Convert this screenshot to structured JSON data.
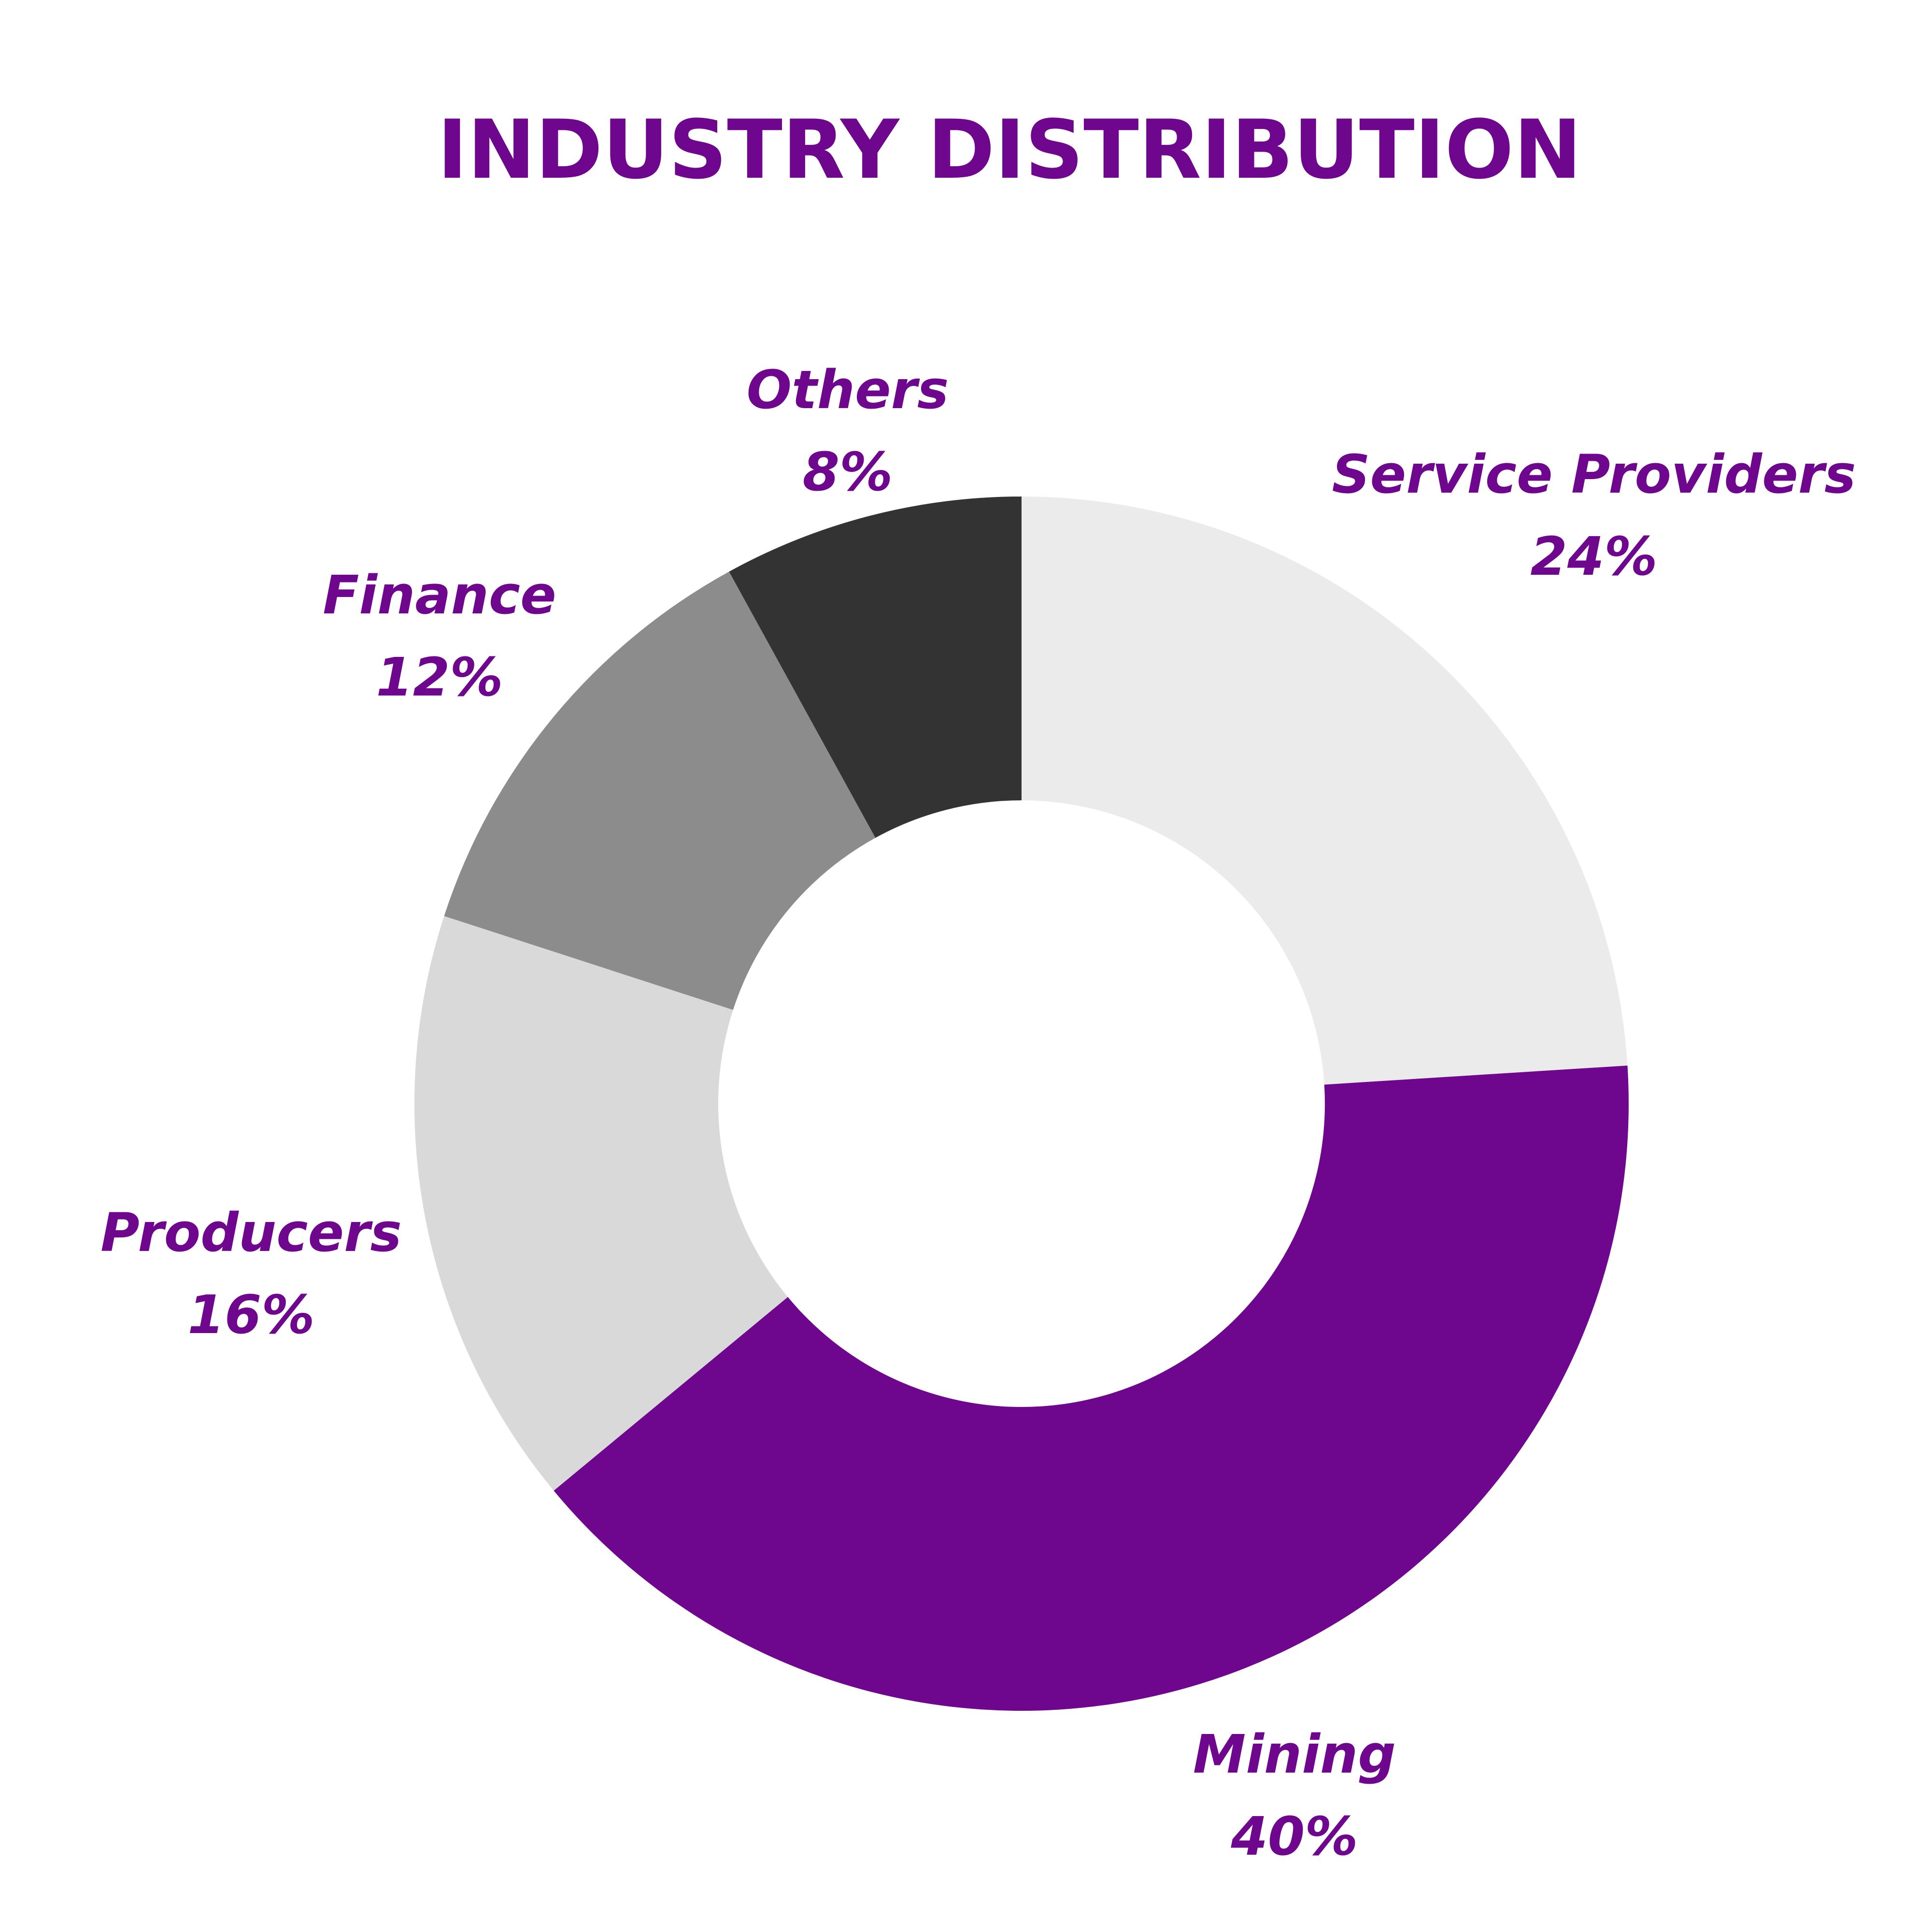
{
  "chart_data": {
    "type": "pie",
    "variant": "donut",
    "title": "INDUSTRY DISTRIBUTION",
    "categories": [
      "Service Providers",
      "Mining",
      "Producers",
      "Finance",
      "Others"
    ],
    "values": [
      24,
      40,
      16,
      12,
      8
    ],
    "value_labels": [
      "24%",
      "40%",
      "16%",
      "12%",
      "8%"
    ],
    "colors": [
      "#ebebeb",
      "#6e078e",
      "#d9d9d9",
      "#8c8c8c",
      "#333333"
    ],
    "unit": "%",
    "legend": "none",
    "label_position": "outside"
  },
  "theme": {
    "title_color": "#6e078e",
    "label_color": "#6e078e",
    "background": "#ffffff"
  }
}
